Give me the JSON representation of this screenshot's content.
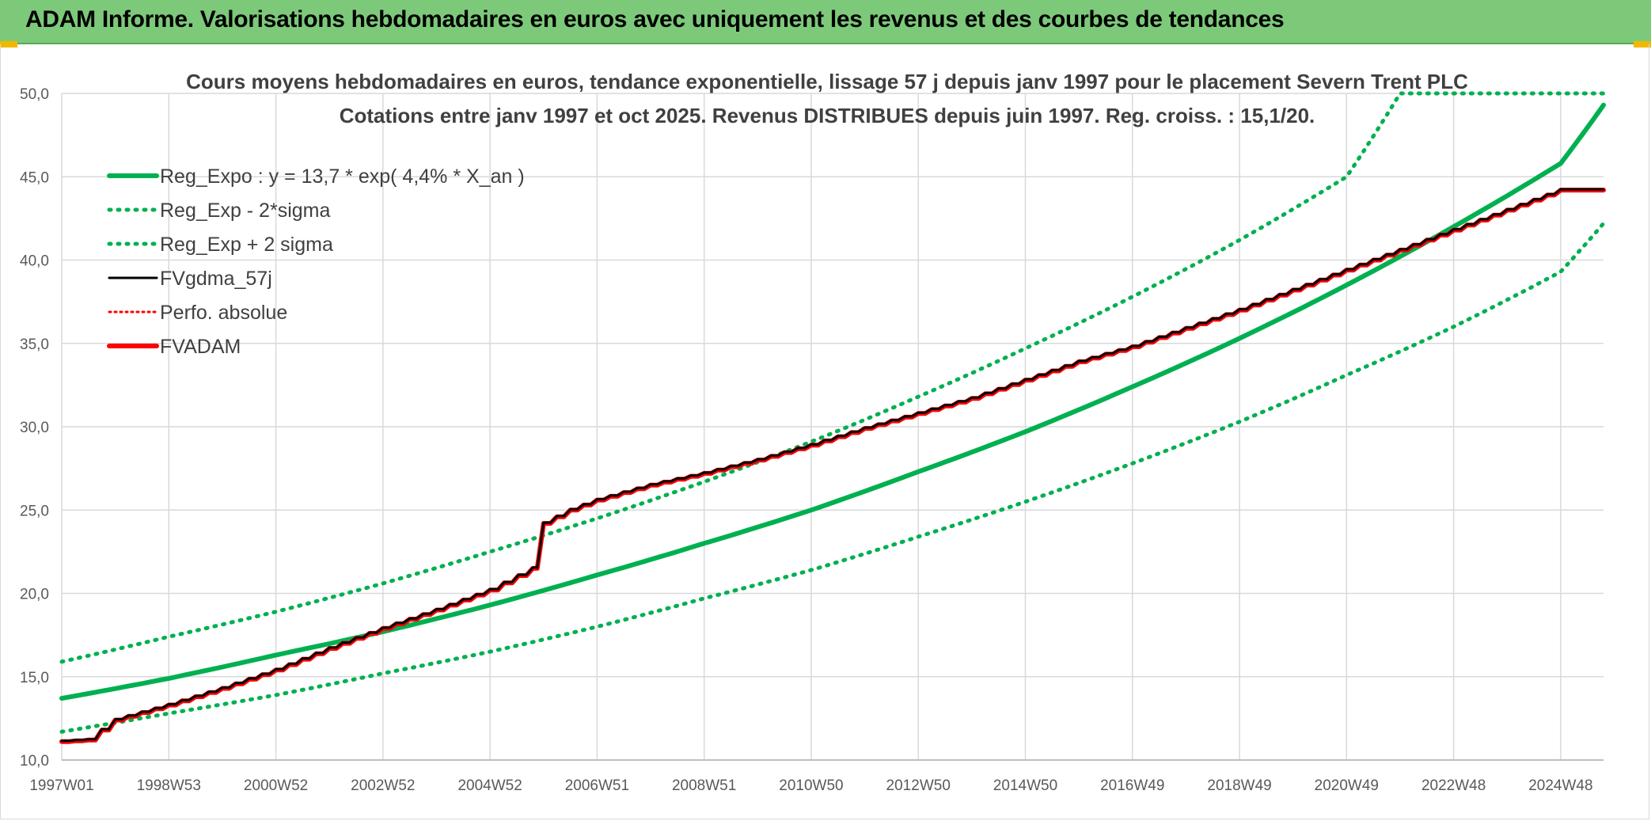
{
  "header": {
    "title": "ADAM Informe. Valorisations hebdomadaires en euros avec uniquement les revenus et des courbes de tendances"
  },
  "colors": {
    "header_bg": "#7dc97a",
    "reg_expo": "#00b050",
    "fvgdma": "#000000",
    "fvadam": "#ff0000",
    "perfo": "#ff0000",
    "grid": "#d9d9d9",
    "accent_corner": "#f2b800"
  },
  "chart_data": {
    "type": "line",
    "title": "Cours moyens hebdomadaires en euros, tendance exponentielle, lissage 57 j depuis janv 1997 pour le placement Severn Trent PLC",
    "subtitle": "Cotations entre janv 1997 et oct 2025. Revenus DISTRIBUES depuis juin 1997. Reg. croiss. : 15,1/20.",
    "xlabel": "",
    "ylabel": "",
    "x_range": [
      1997.0,
      2025.8
    ],
    "x_tick_labels": [
      "1997W01",
      "1998W53",
      "2000W52",
      "2002W52",
      "2004W52",
      "2006W51",
      "2008W51",
      "2010W50",
      "2012W50",
      "2014W50",
      "2016W49",
      "2018W49",
      "2020W49",
      "2022W48",
      "2024W48"
    ],
    "x_tick_years": [
      1997.0,
      1999.0,
      2001.0,
      2003.0,
      2005.0,
      2007.0,
      2009.0,
      2011.0,
      2013.0,
      2015.0,
      2017.0,
      2019.0,
      2021.0,
      2023.0,
      2025.0
    ],
    "ylim": [
      10,
      50
    ],
    "y_ticks": [
      "10,0",
      "15,0",
      "20,0",
      "25,0",
      "30,0",
      "35,0",
      "40,0",
      "45,0",
      "50,0"
    ],
    "y_tick_values": [
      10,
      15,
      20,
      25,
      30,
      35,
      40,
      45,
      50
    ],
    "grid": true,
    "legend_position": "top-left",
    "legend": [
      "Reg_Expo : y = 13,7 * exp( 4,4% *  X_an )",
      "Reg_Exp - 2*sigma",
      "Reg_Exp + 2 sigma",
      "FVgdma_57j",
      "Perfo. absolue",
      "FVADAM"
    ],
    "series": [
      {
        "name": "Reg_Expo : y = 13,7 * exp( 4,4% *  X_an )",
        "style": "solid",
        "x": [
          1997.0,
          1999.0,
          2001.0,
          2003.0,
          2005.0,
          2007.0,
          2009.0,
          2011.0,
          2013.0,
          2015.0,
          2017.0,
          2019.0,
          2021.0,
          2023.0,
          2025.0,
          2025.8
        ],
        "values": [
          13.7,
          14.9,
          16.3,
          17.7,
          19.3,
          21.1,
          23.0,
          25.0,
          27.3,
          29.7,
          32.4,
          35.3,
          38.5,
          42.0,
          45.8,
          49.3
        ]
      },
      {
        "name": "Reg_Exp - 2*sigma",
        "style": "dotted",
        "x": [
          1997.0,
          1999.0,
          2001.0,
          2003.0,
          2005.0,
          2007.0,
          2009.0,
          2011.0,
          2013.0,
          2015.0,
          2017.0,
          2019.0,
          2021.0,
          2023.0,
          2025.0,
          2025.8
        ],
        "values": [
          11.7,
          12.8,
          13.9,
          15.2,
          16.5,
          18.0,
          19.7,
          21.4,
          23.4,
          25.5,
          27.8,
          30.3,
          33.1,
          36.0,
          39.3,
          42.2
        ]
      },
      {
        "name": "Reg_Exp + 2 sigma",
        "style": "dotted",
        "x": [
          1997.0,
          1999.0,
          2001.0,
          2003.0,
          2005.0,
          2007.0,
          2009.0,
          2011.0,
          2013.0,
          2015.0,
          2017.0,
          2019.0,
          2021.0,
          2022.0,
          2025.8
        ],
        "values": [
          15.9,
          17.4,
          18.9,
          20.6,
          22.5,
          24.5,
          26.7,
          29.1,
          31.8,
          34.7,
          37.8,
          41.2,
          45.0,
          50.0,
          50.0
        ]
      },
      {
        "name": "FVgdma_57j",
        "style": "solid",
        "x": [
          1997.0,
          1997.5,
          1998.0,
          1999.0,
          2000.0,
          2001.0,
          2002.0,
          2003.0,
          2004.0,
          2005.0,
          2005.8,
          2006.0,
          2006.5,
          2007.0,
          2008.0,
          2009.0,
          2010.0,
          2011.0,
          2012.0,
          2013.0,
          2014.0,
          2015.0,
          2016.0,
          2017.0,
          2018.0,
          2019.0,
          2020.0,
          2021.0,
          2022.0,
          2023.0,
          2024.0,
          2025.0,
          2025.8
        ],
        "values": [
          11.1,
          11.2,
          12.4,
          13.3,
          14.3,
          15.4,
          16.7,
          17.9,
          19.0,
          20.2,
          21.5,
          24.2,
          25.0,
          25.6,
          26.5,
          27.2,
          28.0,
          28.9,
          29.9,
          30.8,
          31.7,
          32.8,
          33.9,
          34.8,
          35.9,
          37.0,
          38.2,
          39.4,
          40.6,
          41.8,
          43.0,
          44.2,
          44.2
        ]
      },
      {
        "name": "Perfo. absolue",
        "style": "dotted",
        "x": [],
        "values": []
      },
      {
        "name": "FVADAM",
        "style": "solid",
        "x": [
          1997.0,
          1997.5,
          1998.0,
          1999.0,
          2000.0,
          2001.0,
          2002.0,
          2003.0,
          2004.0,
          2005.0,
          2005.8,
          2006.0,
          2006.5,
          2007.0,
          2008.0,
          2009.0,
          2010.0,
          2011.0,
          2012.0,
          2013.0,
          2014.0,
          2015.0,
          2016.0,
          2017.0,
          2018.0,
          2019.0,
          2020.0,
          2021.0,
          2022.0,
          2023.0,
          2024.0,
          2025.0,
          2025.8
        ],
        "values": [
          11.1,
          11.2,
          12.4,
          13.3,
          14.3,
          15.4,
          16.7,
          17.9,
          19.0,
          20.2,
          21.5,
          24.2,
          25.0,
          25.6,
          26.5,
          27.2,
          28.0,
          28.9,
          29.9,
          30.8,
          31.7,
          32.8,
          33.9,
          34.8,
          35.9,
          37.0,
          38.2,
          39.4,
          40.6,
          41.8,
          43.0,
          44.2,
          44.2
        ]
      }
    ]
  }
}
